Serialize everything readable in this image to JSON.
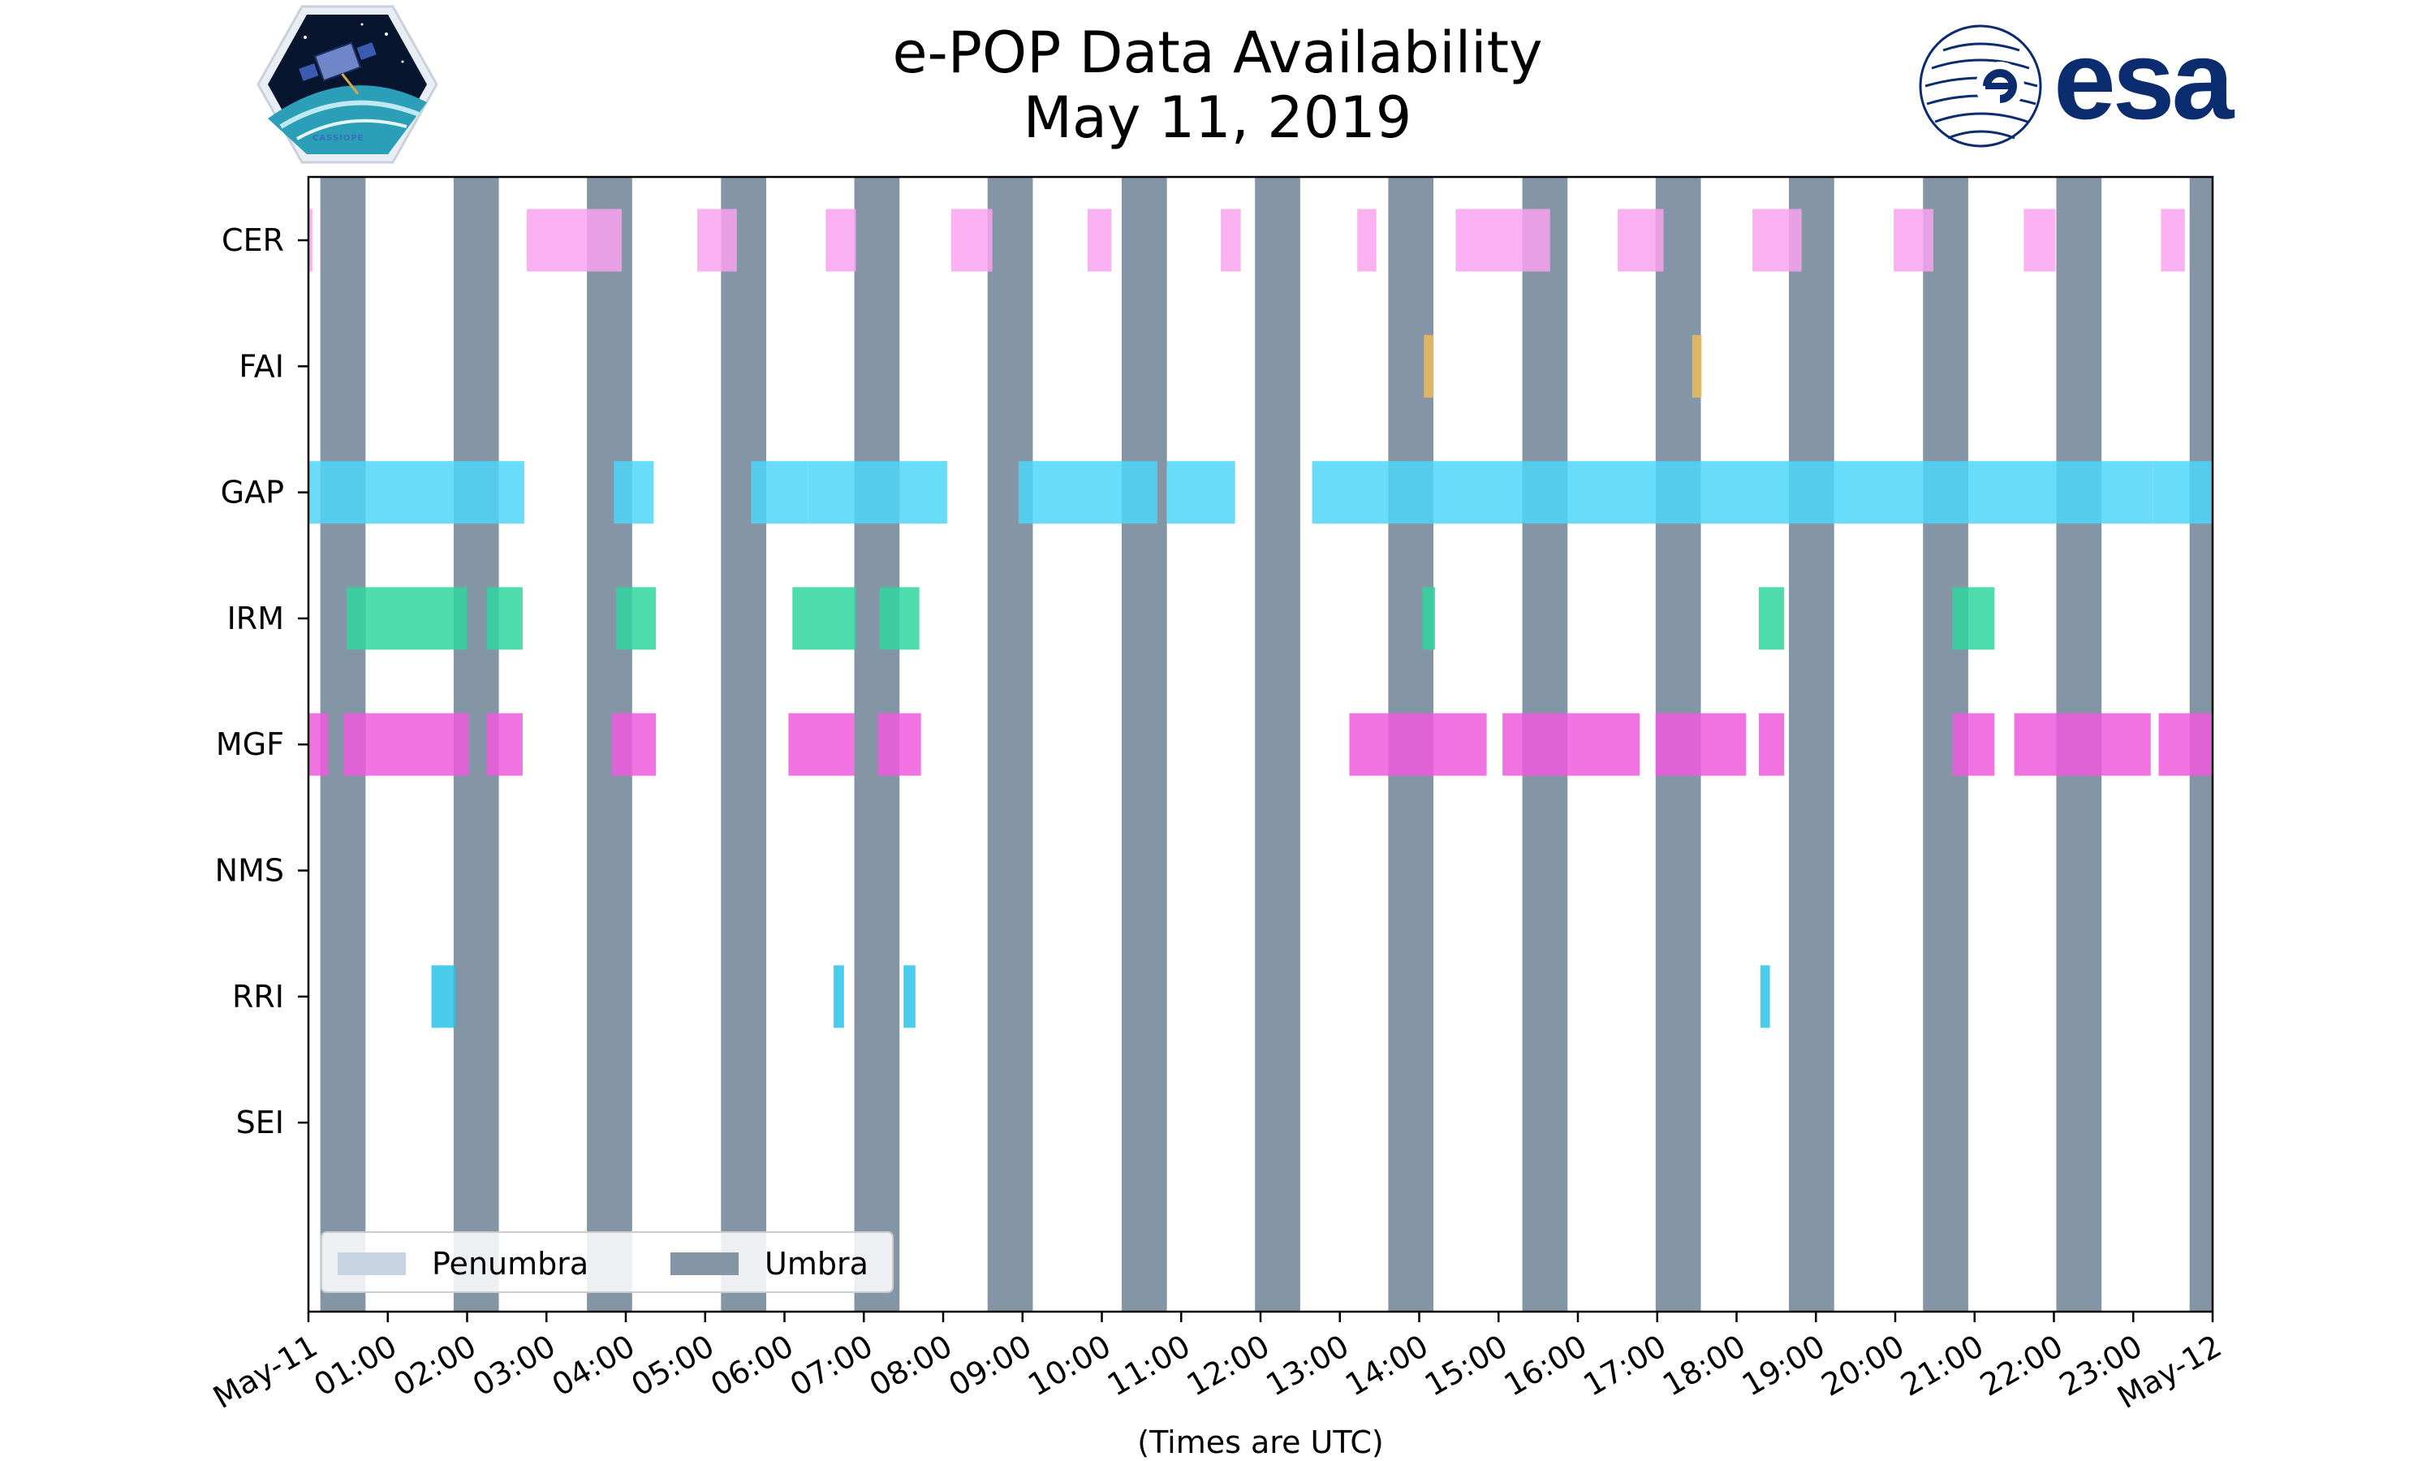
{
  "header": {
    "title_line1": "e-POP Data Availability",
    "title_line2": "May 11, 2019",
    "logo_left_text": "CASSIOPE",
    "logo_right_text": "esa"
  },
  "chart_data": {
    "type": "timeline",
    "title": "e-POP Data Availability May 11, 2019",
    "xlabel": "(Times are UTC)",
    "ylabel": "",
    "xlim_hours": [
      0,
      24
    ],
    "x_tick_labels": [
      "May-11",
      "01:00",
      "02:00",
      "03:00",
      "04:00",
      "05:00",
      "06:00",
      "07:00",
      "08:00",
      "09:00",
      "10:00",
      "11:00",
      "12:00",
      "13:00",
      "14:00",
      "15:00",
      "16:00",
      "17:00",
      "18:00",
      "19:00",
      "20:00",
      "21:00",
      "22:00",
      "23:00",
      "May-12"
    ],
    "instruments": [
      "CER",
      "FAI",
      "GAP",
      "IRM",
      "MGF",
      "NMS",
      "RRI",
      "SEI"
    ],
    "instrument_colors": {
      "CER": "#f9a2ee",
      "FAI": "#edbd5b",
      "GAP": "#4dd6f8",
      "IRM": "#2fd69f",
      "MGF": "#ee5bdc",
      "NMS": "#999999",
      "RRI": "#2ac3e8",
      "SEI": "#999999"
    },
    "umbra_color": "#8495a6",
    "penumbra_color": "#c7d4e3",
    "umbra_intervals": [
      [
        0.15,
        0.72
      ],
      [
        1.83,
        2.4
      ],
      [
        3.51,
        4.08
      ],
      [
        5.2,
        5.77
      ],
      [
        6.88,
        7.45
      ],
      [
        8.56,
        9.13
      ],
      [
        10.25,
        10.82
      ],
      [
        11.93,
        12.5
      ],
      [
        13.61,
        14.18
      ],
      [
        15.3,
        15.87
      ],
      [
        16.98,
        17.55
      ],
      [
        18.66,
        19.23
      ],
      [
        20.35,
        20.92
      ],
      [
        22.03,
        22.6
      ],
      [
        23.71,
        24.0
      ]
    ],
    "penumbra_intervals": [],
    "data_intervals": {
      "CER": [
        [
          0.0,
          0.05
        ],
        [
          2.75,
          3.95
        ],
        [
          4.9,
          5.4
        ],
        [
          6.52,
          6.9
        ],
        [
          8.1,
          8.62
        ],
        [
          9.82,
          10.12
        ],
        [
          11.5,
          11.75
        ],
        [
          13.22,
          13.46
        ],
        [
          14.46,
          14.62
        ],
        [
          14.62,
          15.65
        ],
        [
          16.5,
          17.08
        ],
        [
          18.2,
          18.82
        ],
        [
          19.98,
          20.48
        ],
        [
          21.62,
          22.02
        ],
        [
          23.35,
          23.65
        ]
      ],
      "FAI": [
        [
          14.06,
          14.18
        ],
        [
          17.44,
          17.56
        ]
      ],
      "GAP": [
        [
          0.0,
          0.15
        ],
        [
          0.15,
          0.72
        ],
        [
          0.72,
          1.83
        ],
        [
          1.83,
          2.4
        ],
        [
          2.4,
          2.72
        ],
        [
          3.85,
          4.35
        ],
        [
          5.58,
          6.3
        ],
        [
          6.3,
          6.88
        ],
        [
          6.88,
          7.45
        ],
        [
          7.45,
          8.05
        ],
        [
          8.95,
          10.25
        ],
        [
          10.25,
          10.7
        ],
        [
          10.82,
          11.68
        ],
        [
          12.65,
          13.61
        ],
        [
          13.61,
          14.18
        ],
        [
          14.18,
          15.3
        ],
        [
          15.3,
          15.87
        ],
        [
          15.87,
          16.98
        ],
        [
          16.98,
          17.55
        ],
        [
          17.55,
          18.66
        ],
        [
          18.66,
          19.23
        ],
        [
          19.23,
          20.35
        ],
        [
          20.35,
          20.92
        ],
        [
          20.92,
          22.03
        ],
        [
          22.03,
          22.6
        ],
        [
          22.6,
          23.25
        ],
        [
          23.25,
          24.0
        ]
      ],
      "IRM": [
        [
          0.48,
          2.0
        ],
        [
          2.25,
          2.7
        ],
        [
          3.88,
          4.38
        ],
        [
          6.1,
          6.9
        ],
        [
          7.2,
          7.7
        ],
        [
          14.04,
          14.2
        ],
        [
          18.28,
          18.6
        ],
        [
          20.72,
          21.25
        ]
      ],
      "MGF": [
        [
          0.0,
          0.25
        ],
        [
          0.45,
          2.02
        ],
        [
          2.25,
          2.7
        ],
        [
          3.82,
          4.38
        ],
        [
          6.05,
          6.88
        ],
        [
          7.18,
          7.72
        ],
        [
          13.12,
          14.85
        ],
        [
          15.05,
          16.78
        ],
        [
          16.98,
          18.12
        ],
        [
          18.28,
          18.6
        ],
        [
          20.72,
          21.25
        ],
        [
          21.5,
          23.22
        ],
        [
          23.32,
          24.0
        ]
      ],
      "NMS": [],
      "RRI": [
        [
          1.55,
          1.85
        ],
        [
          6.62,
          6.75
        ],
        [
          7.5,
          7.65
        ],
        [
          18.3,
          18.42
        ]
      ],
      "SEI": []
    },
    "legend": {
      "entries": [
        "Penumbra",
        "Umbra"
      ],
      "placement": "lower-left"
    }
  }
}
